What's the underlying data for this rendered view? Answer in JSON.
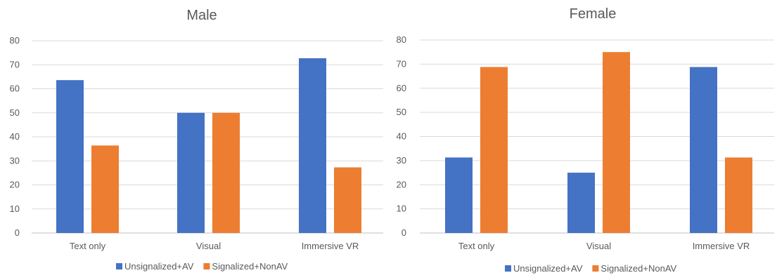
{
  "colors": {
    "series0": "#4472c4",
    "series1": "#ed7d31"
  },
  "chart_data": [
    {
      "type": "bar",
      "title": "Male",
      "categories": [
        "Text only",
        "Visual",
        "Immersive VR"
      ],
      "series": [
        {
          "name": "Unsignalized+AV",
          "values": [
            63.6,
            50,
            72.7
          ]
        },
        {
          "name": "Signalized+NonAV",
          "values": [
            36.4,
            50,
            27.3
          ]
        }
      ],
      "xlabel": "",
      "ylabel": "",
      "ylim": [
        0,
        80
      ],
      "yticks": [
        "0",
        "10",
        "20",
        "30",
        "40",
        "50",
        "60",
        "70",
        "80"
      ],
      "grid": true,
      "legend": "bottom"
    },
    {
      "type": "bar",
      "title": "Female",
      "categories": [
        "Text only",
        "Visual",
        "Immersive VR"
      ],
      "series": [
        {
          "name": "Unsignalized+AV",
          "values": [
            31.3,
            25,
            68.8
          ]
        },
        {
          "name": "Signalized+NonAV",
          "values": [
            68.8,
            75,
            31.3
          ]
        }
      ],
      "xlabel": "",
      "ylabel": "",
      "ylim": [
        0,
        80
      ],
      "yticks": [
        "0",
        "10",
        "20",
        "30",
        "40",
        "50",
        "60",
        "70",
        "80"
      ],
      "grid": true,
      "legend": "bottom"
    }
  ]
}
